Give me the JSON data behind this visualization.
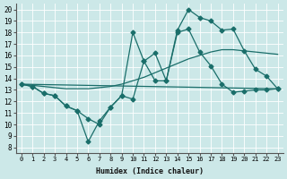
{
  "xlabel": "Humidex (Indice chaleur)",
  "bg_color": "#cce8e8",
  "grid_color": "#b8d8d8",
  "line_color": "#1a6e6a",
  "xlim": [
    -0.5,
    23.5
  ],
  "ylim": [
    7.5,
    20.5
  ],
  "xticks": [
    0,
    1,
    2,
    3,
    4,
    5,
    6,
    7,
    8,
    9,
    10,
    11,
    12,
    13,
    14,
    15,
    16,
    17,
    18,
    19,
    20,
    21,
    22,
    23
  ],
  "yticks": [
    8,
    9,
    10,
    11,
    12,
    13,
    14,
    15,
    16,
    17,
    18,
    19,
    20
  ],
  "line1_x": [
    0,
    1,
    2,
    3,
    4,
    5,
    6,
    7,
    8,
    9,
    10,
    11,
    12,
    13,
    14,
    15,
    16,
    17,
    18,
    19,
    20,
    21,
    22,
    23
  ],
  "line1_y": [
    13.5,
    13.3,
    12.7,
    12.5,
    11.6,
    11.2,
    10.5,
    10.0,
    11.5,
    12.5,
    12.2,
    15.5,
    16.2,
    13.8,
    18.0,
    18.3,
    16.3,
    15.1,
    13.5,
    12.8,
    12.9,
    13.0,
    13.0,
    13.1
  ],
  "line2_x": [
    0,
    1,
    2,
    3,
    4,
    5,
    6,
    7,
    8,
    9,
    10,
    11,
    12,
    13,
    14,
    15,
    16,
    17,
    18,
    19,
    20,
    21,
    22,
    23
  ],
  "line2_y": [
    13.5,
    13.3,
    12.7,
    12.5,
    11.6,
    11.2,
    8.5,
    10.3,
    11.5,
    12.5,
    18.0,
    15.5,
    13.8,
    13.8,
    18.2,
    20.0,
    19.3,
    19.0,
    18.2,
    18.3,
    16.4,
    14.8,
    14.2,
    13.1
  ],
  "line3_x": [
    0,
    23
  ],
  "line3_y": [
    13.5,
    13.1
  ],
  "line4_x": [
    0,
    1,
    2,
    3,
    4,
    5,
    6,
    7,
    8,
    9,
    10,
    11,
    12,
    13,
    14,
    15,
    16,
    17,
    18,
    19,
    20,
    21,
    22,
    23
  ],
  "line4_y": [
    13.5,
    13.4,
    13.3,
    13.2,
    13.1,
    13.1,
    13.1,
    13.2,
    13.3,
    13.5,
    13.8,
    14.1,
    14.5,
    14.9,
    15.3,
    15.7,
    16.0,
    16.3,
    16.5,
    16.5,
    16.4,
    16.3,
    16.2,
    16.1
  ]
}
